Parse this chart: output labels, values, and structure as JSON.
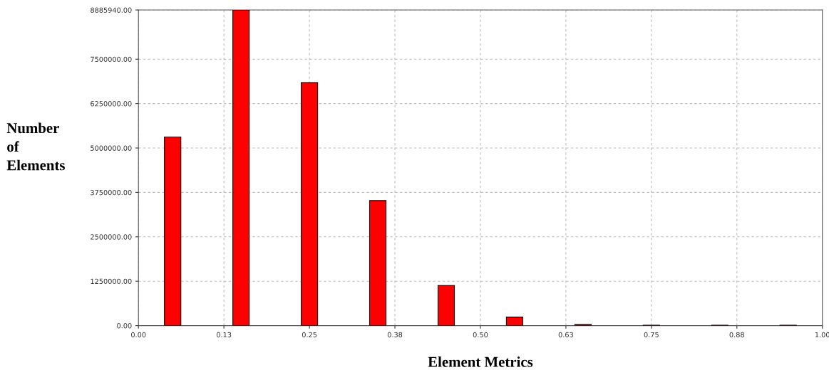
{
  "chart_data": {
    "type": "bar",
    "xlabel": "Element Metrics",
    "ylabel": "Number\nof\nElements",
    "x": [
      0.05,
      0.15,
      0.25,
      0.35,
      0.45,
      0.55,
      0.65,
      0.75,
      0.85,
      0.95
    ],
    "values": [
      5310000,
      8885940,
      6840000,
      3520000,
      1130000,
      240000,
      30000,
      10000,
      10000,
      10000
    ],
    "color": "#ff0000",
    "xlim": [
      0,
      1
    ],
    "xticks": [
      {
        "value": 0,
        "label": "0.00"
      },
      {
        "value": 0.125,
        "label": "0.13"
      },
      {
        "value": 0.25,
        "label": "0.25"
      },
      {
        "value": 0.375,
        "label": "0.38"
      },
      {
        "value": 0.5,
        "label": "0.50"
      },
      {
        "value": 0.625,
        "label": "0.63"
      },
      {
        "value": 0.75,
        "label": "0.75"
      },
      {
        "value": 0.875,
        "label": "0.88"
      },
      {
        "value": 1,
        "label": "1.00"
      }
    ],
    "ylim": [
      0,
      8885940
    ],
    "yticks": [
      {
        "value": 0,
        "label": "0.00"
      },
      {
        "value": 1250000,
        "label": "1250000.00"
      },
      {
        "value": 2500000,
        "label": "2500000.00"
      },
      {
        "value": 3750000,
        "label": "3750000.00"
      },
      {
        "value": 5000000,
        "label": "5000000.00"
      },
      {
        "value": 6250000,
        "label": "6250000.00"
      },
      {
        "value": 7500000,
        "label": "7500000.00"
      },
      {
        "value": 8885940,
        "label": "8885940.00"
      }
    ],
    "grid": true
  }
}
